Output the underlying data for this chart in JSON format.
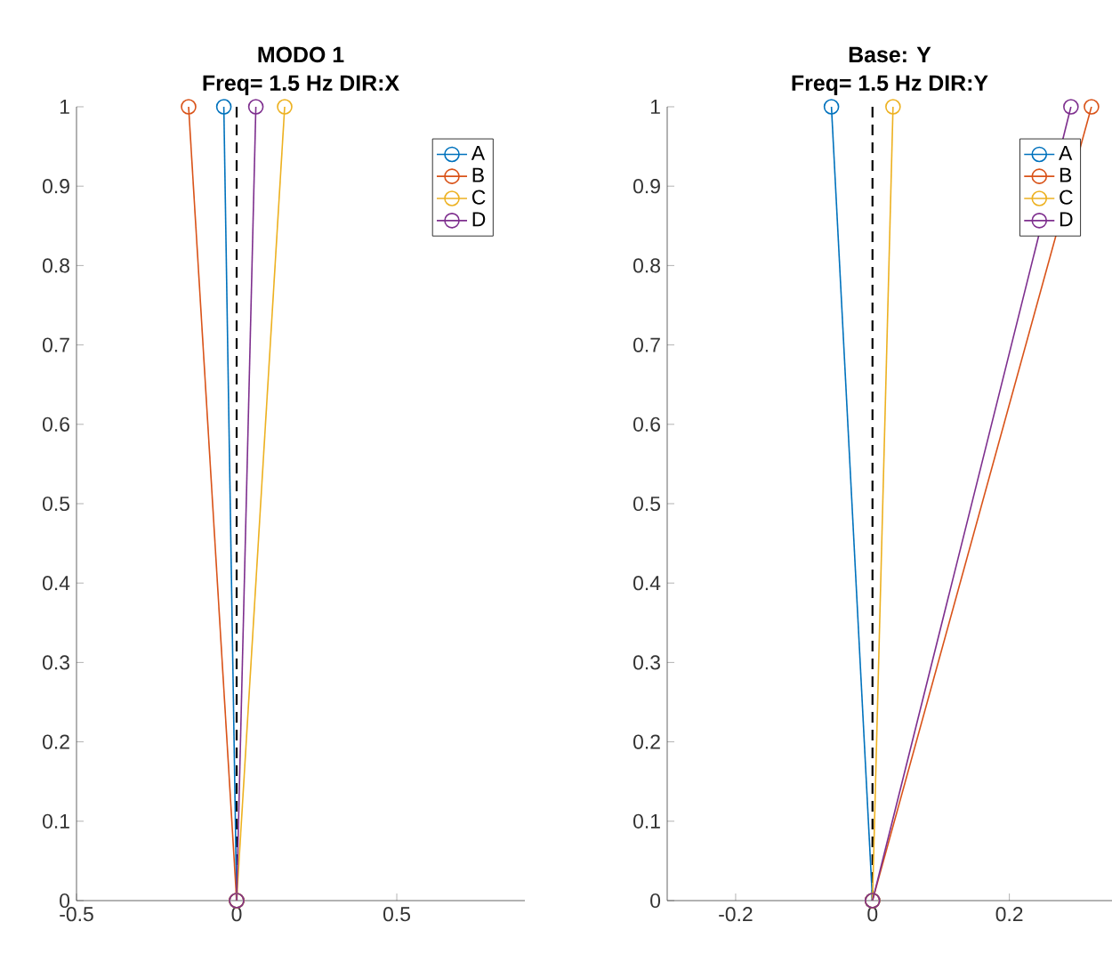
{
  "chart_data": [
    {
      "type": "line",
      "title": "MODO 1",
      "subtitle": "Freq= 1.5 Hz DIR:X",
      "marker": "circle",
      "legend": "top right",
      "series": [
        {
          "name": "A",
          "color": "#0072bd",
          "x": [
            0,
            -0.04
          ],
          "values": [
            0,
            1
          ]
        },
        {
          "name": "B",
          "color": "#d95319",
          "x": [
            0,
            -0.15
          ],
          "values": [
            0,
            1
          ]
        },
        {
          "name": "C",
          "color": "#edb120",
          "x": [
            0,
            0.15
          ],
          "values": [
            0,
            1
          ]
        },
        {
          "name": "D",
          "color": "#7e2f8e",
          "x": [
            0,
            0.06
          ],
          "values": [
            0,
            1
          ]
        }
      ],
      "ref_lines": [
        {
          "axis": "x",
          "value": 0,
          "color": "#000000",
          "line_style": "dashed"
        }
      ],
      "xlim": [
        -0.5,
        0.9
      ],
      "xticks": [
        -0.5,
        0,
        0.5
      ],
      "ylim": [
        0,
        1
      ],
      "yticks": [
        0,
        0.1,
        0.2,
        0.3,
        0.4,
        0.5,
        0.6,
        0.7,
        0.8,
        0.9,
        1
      ]
    },
    {
      "type": "line",
      "title": "Base: Y",
      "subtitle": "Freq= 1.5 Hz DIR:Y",
      "marker": "circle",
      "legend": "top right",
      "series": [
        {
          "name": "A",
          "color": "#0072bd",
          "x": [
            0,
            -0.06
          ],
          "values": [
            0,
            1
          ]
        },
        {
          "name": "B",
          "color": "#d95319",
          "x": [
            0,
            0.32
          ],
          "values": [
            0,
            1
          ]
        },
        {
          "name": "C",
          "color": "#edb120",
          "x": [
            0,
            0.03
          ],
          "values": [
            0,
            1
          ]
        },
        {
          "name": "D",
          "color": "#7e2f8e",
          "x": [
            0,
            0.29
          ],
          "values": [
            0,
            1
          ]
        }
      ],
      "ref_lines": [
        {
          "axis": "x",
          "value": 0,
          "color": "#000000",
          "line_style": "dashed"
        }
      ],
      "xlim": [
        -0.3,
        0.35
      ],
      "xticks": [
        -0.2,
        0,
        0.2
      ],
      "ylim": [
        0,
        1
      ],
      "yticks": [
        0,
        0.1,
        0.2,
        0.3,
        0.4,
        0.5,
        0.6,
        0.7,
        0.8,
        0.9,
        1
      ]
    }
  ]
}
